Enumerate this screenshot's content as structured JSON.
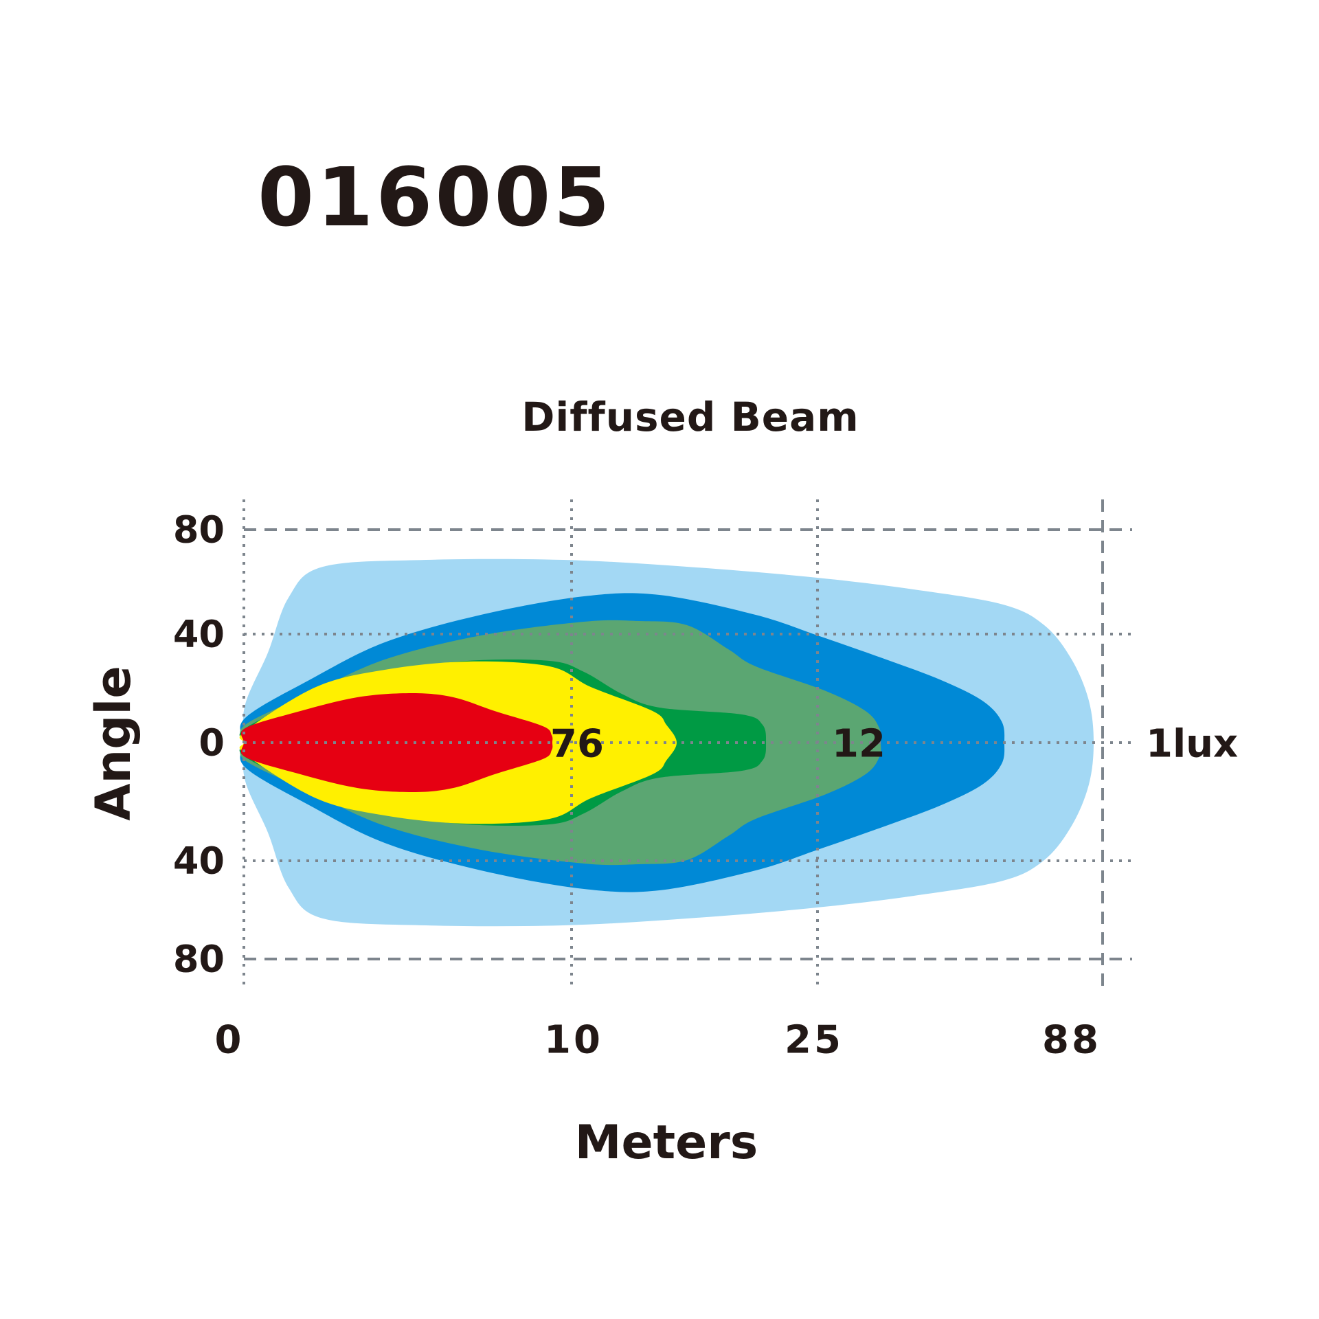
{
  "model": "016005",
  "chart_data": {
    "type": "area",
    "title": "Diffused Beam",
    "xlabel": "Meters",
    "ylabel": "Angle",
    "x_ticks": [
      "0",
      "10",
      "25",
      "88"
    ],
    "y_ticks": [
      "80",
      "40",
      "0",
      "40",
      "80"
    ],
    "zone_labels": [
      "76",
      "12",
      "1lux"
    ],
    "grid": true,
    "zones": [
      {
        "color": "#a3d8f4"
      },
      {
        "color": "#0089d6"
      },
      {
        "color": "#5ba672"
      },
      {
        "color": "#009a44"
      },
      {
        "color": "#fff000"
      },
      {
        "color": "#e60012"
      }
    ]
  }
}
